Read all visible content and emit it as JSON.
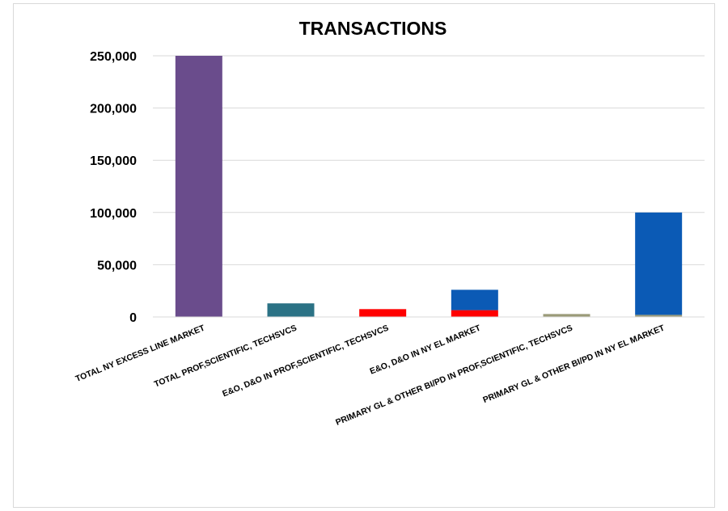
{
  "chart_data": {
    "type": "bar",
    "stacked": true,
    "title": "TRANSACTIONS",
    "xlabel": "",
    "ylabel": "",
    "ylim": [
      0,
      250000
    ],
    "yticks": [
      0,
      50000,
      100000,
      150000,
      200000,
      250000
    ],
    "ytick_labels": [
      "0",
      "50,000",
      "100,000",
      "150,000",
      "200,000",
      "250,000"
    ],
    "grid": true,
    "legend": "none",
    "categories": [
      "TOTAL NY EXCESS LINE MARKET",
      "TOTAL PROF,SCIENTIFIC, TECHSVCS",
      "E&O, D&O IN PROF,SCIENTIFIC, TECHSVCS",
      "E&O, D&O IN NY EL MARKET",
      "PRIMARY GL & OTHER BI/PD IN PROF,SCIENTIFIC, TECHSVCS",
      "PRIMARY GL & OTHER BI/PD IN NY EL MARKET"
    ],
    "segments": [
      [
        {
          "value": 250000,
          "color": "#6a4c8c"
        }
      ],
      [
        {
          "value": 13000,
          "color": "#2b7285"
        }
      ],
      [
        {
          "value": 7500,
          "color": "#ff0000"
        }
      ],
      [
        {
          "value": 6500,
          "color": "#ff0000"
        },
        {
          "value": 19500,
          "color": "#0b5ab5"
        }
      ],
      [
        {
          "value": 2800,
          "color": "#9a9a78"
        }
      ],
      [
        {
          "value": 2000,
          "color": "#9a9a78"
        },
        {
          "value": 98000,
          "color": "#0b5ab5"
        }
      ]
    ],
    "colors": {
      "purple": "#6a4c8c",
      "teal": "#2b7285",
      "red": "#ff0000",
      "blue": "#0b5ab5",
      "olive": "#9a9a78",
      "grid": "#d9d9d9"
    }
  }
}
